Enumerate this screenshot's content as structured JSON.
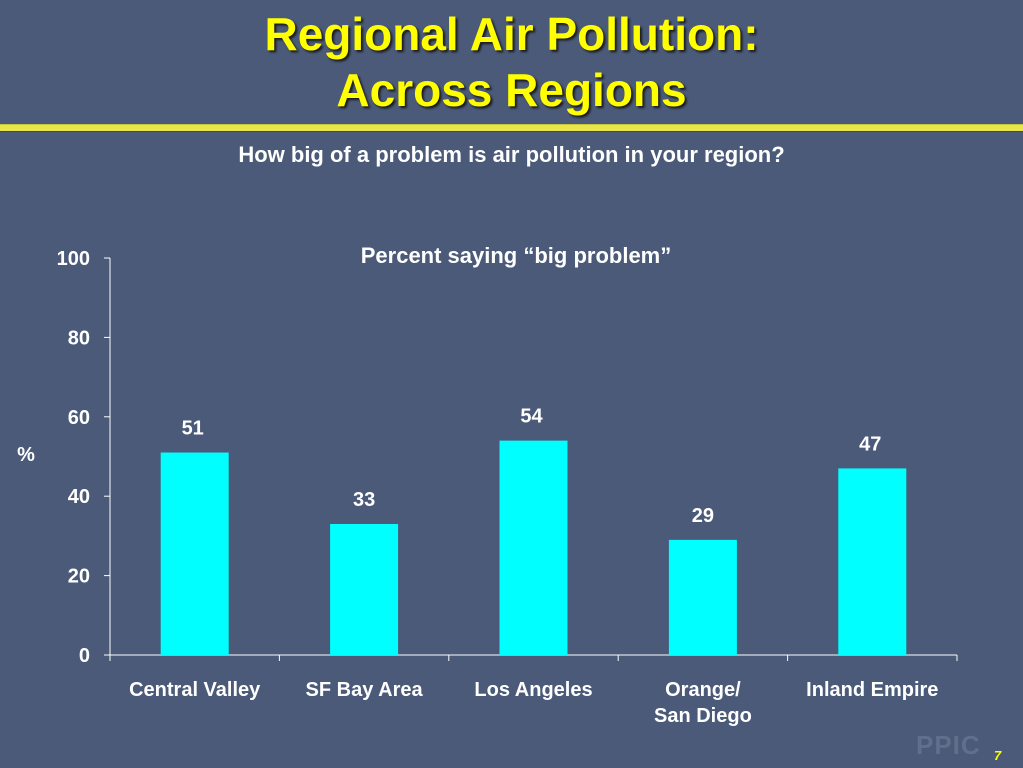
{
  "slide": {
    "title_line1": "Regional Air Pollution:",
    "title_line2": "Across Regions",
    "question": "How big of a problem is air pollution in your region?",
    "logo": "PPIC",
    "page_number": "7",
    "title_color": "#ffff00",
    "background_color": "#4a5a78"
  },
  "chart_data": {
    "type": "bar",
    "title": "Percent saying “big problem”",
    "ylabel": "%",
    "xlabel": "",
    "categories": [
      [
        "Central Valley"
      ],
      [
        "SF Bay Area"
      ],
      [
        "Los Angeles"
      ],
      [
        "Orange/",
        "San Diego"
      ],
      [
        "Inland Empire"
      ]
    ],
    "values": [
      51,
      33,
      54,
      29,
      47
    ],
    "value_labels": [
      "51",
      "33",
      "54",
      "29",
      "47"
    ],
    "ylim": [
      0,
      100
    ],
    "yticks": [
      "0",
      "20",
      "40",
      "60",
      "80",
      "100"
    ],
    "bar_color": "#00ffff",
    "grid": false,
    "legend": "none"
  }
}
